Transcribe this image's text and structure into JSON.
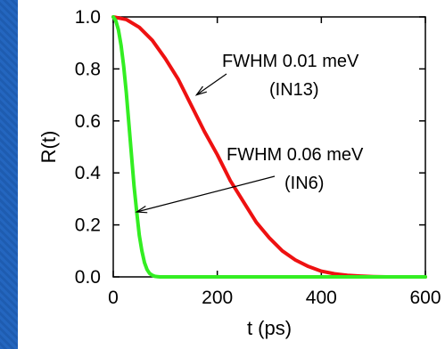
{
  "chart_data": {
    "type": "line",
    "xlabel": "t (ps)",
    "ylabel": "R(t)",
    "xlim": [
      0,
      600
    ],
    "ylim": [
      0,
      1
    ],
    "x_ticks": [
      "0",
      "200",
      "400",
      "600"
    ],
    "y_ticks": [
      "0.0",
      "0.2",
      "0.4",
      "0.6",
      "0.8",
      "1.0"
    ],
    "x_tick_values": [
      0,
      200,
      400,
      600
    ],
    "y_tick_values": [
      0,
      0.2,
      0.4,
      0.6,
      0.8,
      1.0
    ],
    "grid": false,
    "series": [
      {
        "color": "#ee1111",
        "x": [
          0,
          25,
          50,
          75,
          100,
          125,
          150,
          175,
          200,
          225,
          250,
          275,
          300,
          325,
          350,
          375,
          400,
          425,
          450,
          475,
          500,
          525,
          550,
          600
        ],
        "y": [
          1.0,
          0.99,
          0.96,
          0.91,
          0.84,
          0.76,
          0.66,
          0.56,
          0.47,
          0.37,
          0.29,
          0.21,
          0.15,
          0.1,
          0.065,
          0.04,
          0.022,
          0.012,
          0.006,
          0.003,
          0.001,
          0.0,
          0.0,
          0.0
        ]
      },
      {
        "color": "#33ee22",
        "x": [
          0,
          5,
          10,
          15,
          20,
          25,
          30,
          35,
          40,
          45,
          50,
          55,
          60,
          65,
          70,
          75,
          80,
          85,
          90,
          100,
          150,
          200,
          300,
          400,
          500,
          600
        ],
        "y": [
          1.0,
          0.985,
          0.95,
          0.89,
          0.81,
          0.71,
          0.59,
          0.47,
          0.35,
          0.25,
          0.16,
          0.1,
          0.055,
          0.028,
          0.013,
          0.006,
          0.002,
          0.001,
          0.0,
          0.0,
          0.0,
          0.0,
          0.0,
          0.0,
          0.0,
          0.0
        ]
      }
    ],
    "annotations": [
      {
        "line1": "FWHM 0.01 meV",
        "line2": "(IN13)",
        "arrow_to": {
          "x": 160,
          "y": 0.7
        }
      },
      {
        "line1": "FWHM 0.06 meV",
        "line2": "(IN6)",
        "arrow_to": {
          "x": 45,
          "y": 0.25
        }
      }
    ]
  }
}
